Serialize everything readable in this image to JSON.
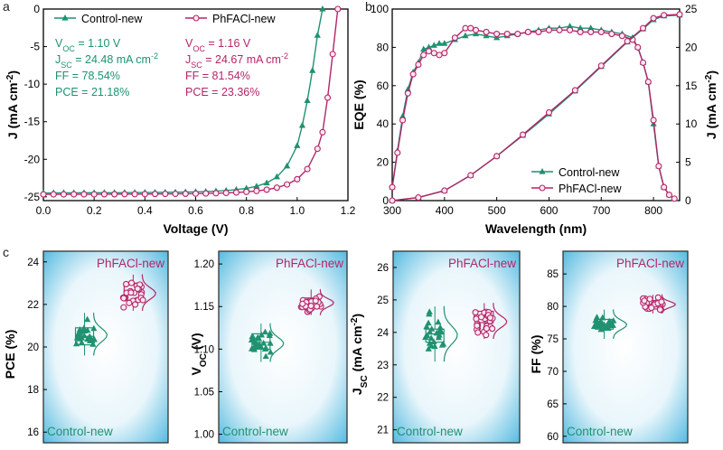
{
  "panel_letters": [
    "a",
    "b",
    "c"
  ],
  "colors": {
    "control": "#1f9270",
    "phfacl": "#b3256a",
    "axis": "#000000",
    "grad_center": "#ffffff",
    "grad_edge": "#3fb2dd"
  },
  "chart_data": [
    {
      "id": "a",
      "type": "line",
      "xlabel": "Voltage (V)",
      "ylabel": "J (mA cm-2)",
      "xlim": [
        0,
        1.2
      ],
      "ylim": [
        -25.5,
        0
      ],
      "xticks": [
        0.0,
        0.2,
        0.4,
        0.6,
        0.8,
        1.0,
        1.2
      ],
      "xtick_labels": [
        "0.0",
        "0.2",
        "0.4",
        "0.6",
        "0.8",
        "1.0",
        "1.2"
      ],
      "yticks": [
        -25,
        -20,
        -15,
        -10,
        -5,
        0
      ],
      "legend": "top",
      "series": [
        {
          "name": "Control-new",
          "marker": "triangle",
          "params": {
            "Voc": "VOC = 1.10 V",
            "Jsc": "JSC = 24.48 mA cm-2",
            "FF": "FF = 78.54%",
            "PCE": "PCE = 21.18%"
          },
          "x": [
            0,
            0.04,
            0.08,
            0.12,
            0.16,
            0.2,
            0.24,
            0.28,
            0.32,
            0.36,
            0.4,
            0.44,
            0.48,
            0.52,
            0.56,
            0.6,
            0.64,
            0.68,
            0.72,
            0.76,
            0.8,
            0.84,
            0.88,
            0.92,
            0.96,
            1.0,
            1.02,
            1.04,
            1.06,
            1.08,
            1.1
          ],
          "y": [
            -24.48,
            -24.48,
            -24.47,
            -24.47,
            -24.46,
            -24.46,
            -24.45,
            -24.45,
            -24.44,
            -24.43,
            -24.42,
            -24.41,
            -24.4,
            -24.38,
            -24.36,
            -24.33,
            -24.29,
            -24.24,
            -24.16,
            -24.04,
            -23.87,
            -23.6,
            -23.15,
            -22.35,
            -20.9,
            -18.2,
            -15.5,
            -12.2,
            -8.2,
            -3.5,
            0
          ]
        },
        {
          "name": "PhFACl-new",
          "marker": "circle",
          "params": {
            "Voc": "VOC = 1.16 V",
            "Jsc": "JSC = 24.67 mA cm-2",
            "FF": "FF = 81.54%",
            "PCE": "PCE = 23.36%"
          },
          "x": [
            0,
            0.04,
            0.08,
            0.12,
            0.16,
            0.2,
            0.24,
            0.28,
            0.32,
            0.36,
            0.4,
            0.44,
            0.48,
            0.52,
            0.56,
            0.6,
            0.64,
            0.68,
            0.72,
            0.76,
            0.8,
            0.84,
            0.88,
            0.92,
            0.96,
            1.0,
            1.04,
            1.08,
            1.1,
            1.12,
            1.14,
            1.16
          ],
          "y": [
            -24.67,
            -24.67,
            -24.67,
            -24.66,
            -24.66,
            -24.66,
            -24.65,
            -24.65,
            -24.64,
            -24.64,
            -24.63,
            -24.62,
            -24.61,
            -24.6,
            -24.59,
            -24.57,
            -24.55,
            -24.52,
            -24.48,
            -24.42,
            -24.34,
            -24.22,
            -24.05,
            -23.78,
            -23.35,
            -22.65,
            -21.3,
            -18.6,
            -16.4,
            -11.8,
            -6.0,
            0
          ]
        }
      ]
    },
    {
      "id": "b",
      "type": "line",
      "xlabel": "Wavelength (nm)",
      "ylabel": "EQE (%)",
      "y2label": "J (mA cm-2)",
      "xlim": [
        300,
        850
      ],
      "ylim": [
        0,
        100
      ],
      "y2lim": [
        0,
        25
      ],
      "xticks": [
        300,
        400,
        500,
        600,
        700,
        800
      ],
      "yticks": [
        0,
        20,
        40,
        60,
        80,
        100
      ],
      "y2ticks": [
        0,
        5,
        10,
        15,
        20,
        25
      ],
      "legend": "bottom-right",
      "series": [
        {
          "name": "Control-new",
          "marker": "triangle",
          "axis": "left",
          "x": [
            300,
            310,
            320,
            330,
            340,
            350,
            360,
            370,
            380,
            390,
            400,
            420,
            440,
            460,
            480,
            500,
            520,
            540,
            560,
            580,
            600,
            620,
            640,
            660,
            680,
            700,
            720,
            740,
            760,
            770,
            780,
            790,
            800,
            810,
            820,
            830,
            840
          ],
          "y": [
            7,
            26,
            44,
            58,
            67,
            72,
            79,
            80,
            81,
            82,
            82,
            84,
            86,
            87,
            86,
            85,
            86,
            87,
            88,
            89,
            90,
            90,
            91,
            90,
            90,
            89,
            88,
            87,
            85,
            80,
            72,
            62,
            40,
            18,
            7,
            3,
            1
          ]
        },
        {
          "name": "PhFACl-new",
          "marker": "circle",
          "axis": "left",
          "x": [
            300,
            310,
            320,
            330,
            340,
            350,
            360,
            370,
            380,
            390,
            400,
            420,
            440,
            450,
            460,
            480,
            500,
            520,
            540,
            560,
            580,
            600,
            620,
            640,
            660,
            680,
            700,
            720,
            740,
            760,
            770,
            780,
            790,
            800,
            810,
            820,
            830,
            840
          ],
          "y": [
            7,
            25,
            42,
            56,
            66,
            71,
            76,
            78,
            77,
            76,
            77,
            85,
            90,
            90,
            89,
            88,
            87,
            87,
            87,
            88,
            88,
            89,
            89,
            89,
            88,
            88,
            88,
            87,
            86,
            84,
            80,
            72,
            62,
            42,
            18,
            7,
            3,
            1
          ]
        },
        {
          "name": "Control-new (J)",
          "marker": "triangle",
          "axis": "right",
          "x": [
            300,
            350,
            400,
            450,
            500,
            550,
            600,
            650,
            700,
            750,
            780,
            800,
            820,
            850
          ],
          "y": [
            0,
            0.4,
            1.3,
            3.3,
            5.8,
            8.5,
            11.3,
            14.3,
            17.5,
            20.7,
            22.4,
            23.6,
            24.1,
            24.2
          ]
        },
        {
          "name": "PhFACl-new (J)",
          "marker": "circle",
          "axis": "right",
          "x": [
            300,
            350,
            400,
            450,
            500,
            550,
            600,
            650,
            700,
            750,
            780,
            800,
            820,
            850
          ],
          "y": [
            0,
            0.4,
            1.3,
            3.3,
            5.8,
            8.6,
            11.5,
            14.4,
            17.6,
            20.8,
            22.5,
            23.8,
            24.2,
            24.3
          ]
        }
      ]
    },
    {
      "id": "c1",
      "type": "box-scatter",
      "ylabel": "PCE (%)",
      "ylim": [
        15.5,
        24.5
      ],
      "yticks": [
        16,
        18,
        20,
        22,
        24
      ],
      "label_top": "PhFACl-new",
      "label_bottom": "Control-new",
      "groups": [
        {
          "name": "Control-new",
          "box": [
            20.1,
            20.5,
            20.9
          ],
          "whisker": [
            19.6,
            21.6
          ],
          "mean": 20.45
        },
        {
          "name": "PhFACl-new",
          "box": [
            22.2,
            22.6,
            23.0
          ],
          "whisker": [
            21.7,
            23.4
          ],
          "mean": 22.6
        }
      ]
    },
    {
      "id": "c2",
      "type": "box-scatter",
      "ylabel": "VOC (V)",
      "ylim": [
        0.99,
        1.215
      ],
      "yticks": [
        1.0,
        1.05,
        1.1,
        1.15,
        1.2
      ],
      "ytick_labels": [
        "1.00",
        "1.05",
        "1.10",
        "1.15",
        "1.20"
      ],
      "label_top": "PhFACl-new",
      "label_bottom": "Control-new",
      "groups": [
        {
          "name": "Control-new",
          "box": [
            1.1,
            1.108,
            1.118
          ],
          "whisker": [
            1.085,
            1.13
          ],
          "mean": 1.108
        },
        {
          "name": "PhFACl-new",
          "box": [
            1.15,
            1.155,
            1.16
          ],
          "whisker": [
            1.14,
            1.17
          ],
          "mean": 1.155
        }
      ]
    },
    {
      "id": "c3",
      "type": "box-scatter",
      "ylabel": "JSC (mA cm-2)",
      "ylim": [
        20.6,
        26.5
      ],
      "yticks": [
        21,
        22,
        23,
        24,
        25,
        26
      ],
      "label_top": "PhFACl-new",
      "label_bottom": "Control-new",
      "groups": [
        {
          "name": "Control-new",
          "box": [
            23.7,
            23.95,
            24.1
          ],
          "whisker": [
            23.1,
            24.8
          ],
          "mean": 23.9
        },
        {
          "name": "PhFACl-new",
          "box": [
            24.3,
            24.45,
            24.65
          ],
          "whisker": [
            23.8,
            24.9
          ],
          "mean": 24.45
        }
      ]
    },
    {
      "id": "c4",
      "type": "box-scatter",
      "ylabel": "FF (%)",
      "ylim": [
        59,
        88.5
      ],
      "yticks": [
        60,
        65,
        70,
        75,
        80,
        85
      ],
      "label_top": "PhFACl-new",
      "label_bottom": "Control-new",
      "groups": [
        {
          "name": "Control-new",
          "box": [
            76.5,
            77.3,
            78.0
          ],
          "whisker": [
            75.0,
            79.5
          ],
          "mean": 77.2
        },
        {
          "name": "PhFACl-new",
          "box": [
            79.6,
            80.3,
            80.9
          ],
          "whisker": [
            78.9,
            81.8
          ],
          "mean": 80.3
        }
      ]
    }
  ]
}
